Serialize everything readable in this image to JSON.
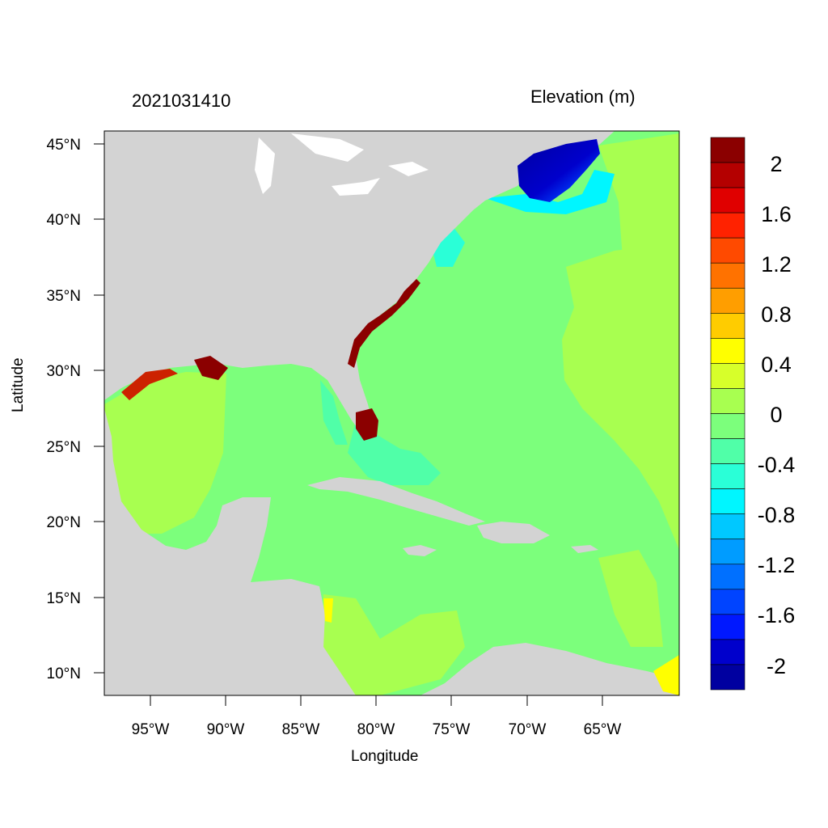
{
  "header": {
    "timestamp": "2021031410",
    "variable_title": "Elevation (m)"
  },
  "axes": {
    "xlabel": "Longitude",
    "ylabel": "Latitude",
    "x_ticks": [
      "95°W",
      "90°W",
      "85°W",
      "80°W",
      "75°W",
      "70°W",
      "65°W"
    ],
    "y_ticks": [
      "45°N",
      "40°N",
      "35°N",
      "30°N",
      "25°N",
      "20°N",
      "15°N",
      "10°N"
    ]
  },
  "colorbar": {
    "labels": [
      "2",
      "1.6",
      "1.2",
      "0.8",
      "0.4",
      "0",
      "-0.4",
      "-0.8",
      "-1.2",
      "-1.6",
      "-2"
    ],
    "colors": [
      "#8b0000",
      "#b40000",
      "#e00000",
      "#ff2200",
      "#ff4a00",
      "#ff7200",
      "#ff9e00",
      "#ffcc00",
      "#ffff00",
      "#d7ff2a",
      "#a8ff50",
      "#7cff7c",
      "#50ffa8",
      "#2affd7",
      "#00f6ff",
      "#00c8ff",
      "#009cff",
      "#0070ff",
      "#0044ff",
      "#0018ff",
      "#0000cc",
      "#0000a0"
    ]
  },
  "map_colors": {
    "land": "#d3d3d3",
    "ocean_zero": "#7cff7c",
    "slight_positive": "#a8ff50",
    "surge_high": "#8b0000",
    "depression_low": "#0000cc"
  }
}
